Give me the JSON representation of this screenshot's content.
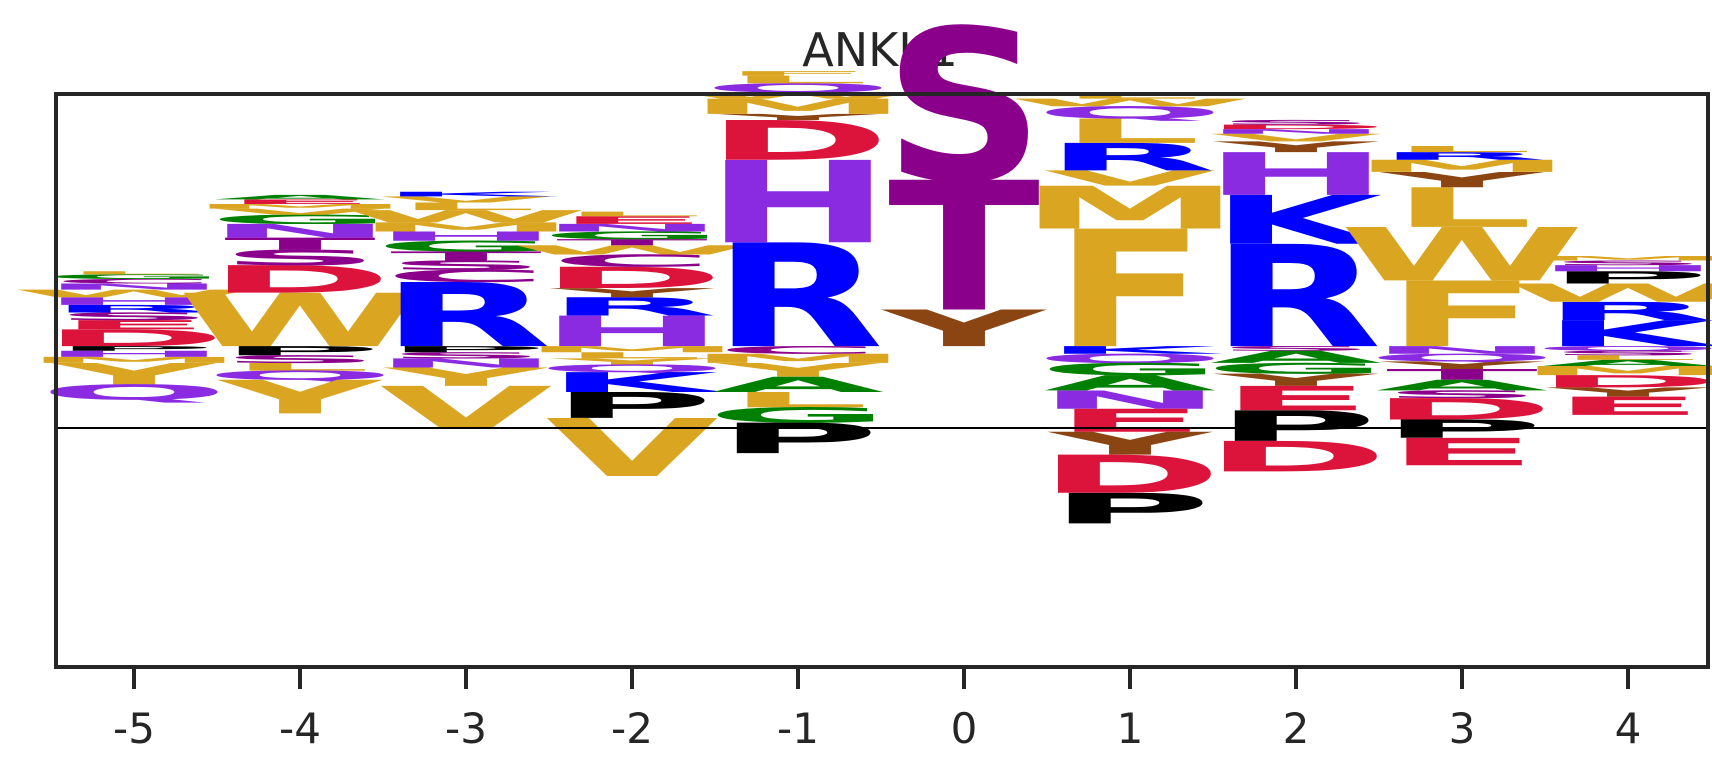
{
  "chart_data": {
    "type": "sequence-logo",
    "title": "ANKK1",
    "xlabel": "",
    "ylabel": "",
    "ylim": [
      -2.1,
      1.65
    ],
    "xticks": [
      "-5",
      "-4",
      "-3",
      "-2",
      "-1",
      "0",
      "1",
      "2",
      "3",
      "4"
    ],
    "colors": {
      "D": "#dc143c",
      "E": "#dc143c",
      "R": "#0000ff",
      "K": "#0000ff",
      "H": "#8a2be2",
      "N": "#8a2be2",
      "Q": "#8a2be2",
      "S": "#8b008b",
      "T": "#8b008b",
      "C": "#8b008b",
      "F": "#daa520",
      "W": "#daa520",
      "Y": "#daa520",
      "M": "#daa520",
      "L": "#daa520",
      "V": "#daa520",
      "I": "#daa520",
      "G": "#008000",
      "A": "#008000",
      "P": "#000000",
      "y": "#8b4513"
    },
    "positions": [
      {
        "x": "-5",
        "up": [
          [
            "D",
            0.11
          ],
          [
            "E",
            0.06
          ],
          [
            "S",
            0.05
          ],
          [
            "R",
            0.05
          ],
          [
            "H",
            0.05
          ],
          [
            "W",
            0.05
          ],
          [
            "N",
            0.04
          ],
          [
            "C",
            0.03
          ],
          [
            "G",
            0.03
          ],
          [
            "L",
            0.02
          ]
        ],
        "down": [
          [
            "P",
            0.03
          ],
          [
            "H",
            0.04
          ],
          [
            "M",
            0.04
          ],
          [
            "Y",
            0.14
          ],
          [
            "Q",
            0.1
          ]
        ]
      },
      {
        "x": "-4",
        "up": [
          [
            "W",
            0.35
          ],
          [
            "D",
            0.18
          ],
          [
            "S",
            0.1
          ],
          [
            "T",
            0.08
          ],
          [
            "N",
            0.09
          ],
          [
            "G",
            0.06
          ],
          [
            "V",
            0.04
          ],
          [
            "M",
            0.03
          ],
          [
            "E",
            0.03
          ],
          [
            "A",
            0.03
          ]
        ],
        "down": [
          [
            "P",
            0.06
          ],
          [
            "S",
            0.05
          ],
          [
            "L",
            0.05
          ],
          [
            "Q",
            0.06
          ],
          [
            "Y",
            0.22
          ]
        ]
      },
      {
        "x": "-3",
        "up": [
          [
            "R",
            0.42
          ],
          [
            "C",
            0.08
          ],
          [
            "S",
            0.06
          ],
          [
            "T",
            0.06
          ],
          [
            "G",
            0.07
          ],
          [
            "H",
            0.06
          ],
          [
            "M",
            0.06
          ],
          [
            "W",
            0.08
          ],
          [
            "L",
            0.05
          ],
          [
            "V",
            0.04
          ],
          [
            "K",
            0.03
          ]
        ],
        "down": [
          [
            "P",
            0.04
          ],
          [
            "S",
            0.04
          ],
          [
            "N",
            0.06
          ],
          [
            "Y",
            0.12
          ],
          [
            "V",
            0.28
          ]
        ]
      },
      {
        "x": "-2",
        "up": [
          [
            "H",
            0.2
          ],
          [
            "R",
            0.12
          ],
          [
            "y",
            0.06
          ],
          [
            "D",
            0.14
          ],
          [
            "C",
            0.08
          ],
          [
            "W",
            0.06
          ],
          [
            "T",
            0.04
          ],
          [
            "G",
            0.05
          ],
          [
            "N",
            0.05
          ],
          [
            "E",
            0.05
          ],
          [
            "L",
            0.03
          ]
        ],
        "down": [
          [
            "M",
            0.04
          ],
          [
            "L",
            0.04
          ],
          [
            "Y",
            0.04
          ],
          [
            "Q",
            0.05
          ],
          [
            "K",
            0.13
          ],
          [
            "P",
            0.17
          ],
          [
            "V",
            0.38
          ]
        ]
      },
      {
        "x": "-1",
        "up": [
          [
            "R",
            0.68
          ],
          [
            "H",
            0.54
          ],
          [
            "D",
            0.26
          ],
          [
            "y",
            0.04
          ],
          [
            "M",
            0.1
          ],
          [
            "W",
            0.04
          ],
          [
            "Q",
            0.06
          ],
          [
            "L",
            0.05
          ],
          [
            "F",
            0.03
          ]
        ],
        "down": [
          [
            "C",
            0.05
          ],
          [
            "M",
            0.06
          ],
          [
            "Y",
            0.09
          ],
          [
            "A",
            0.1
          ],
          [
            "L",
            0.1
          ],
          [
            "G",
            0.1
          ],
          [
            "P",
            0.2
          ]
        ]
      },
      {
        "x": "0",
        "up": [
          [
            "y",
            0.24
          ],
          [
            "T",
            0.85
          ],
          [
            "S",
            1.0
          ]
        ],
        "down": []
      },
      {
        "x": "1",
        "up": [
          [
            "F",
            0.77
          ],
          [
            "M",
            0.28
          ],
          [
            "V",
            0.1
          ],
          [
            "R",
            0.18
          ],
          [
            "L",
            0.16
          ],
          [
            "Q",
            0.08
          ],
          [
            "W",
            0.05
          ],
          [
            "L",
            0.04
          ]
        ],
        "down": [
          [
            "K",
            0.05
          ],
          [
            "Q",
            0.06
          ],
          [
            "G",
            0.08
          ],
          [
            "A",
            0.1
          ],
          [
            "N",
            0.12
          ],
          [
            "E",
            0.15
          ],
          [
            "y",
            0.15
          ],
          [
            "D",
            0.25
          ],
          [
            "P",
            0.2
          ]
        ]
      },
      {
        "x": "2",
        "up": [
          [
            "R",
            0.67
          ],
          [
            "K",
            0.32
          ],
          [
            "H",
            0.28
          ],
          [
            "y",
            0.07
          ],
          [
            "V",
            0.05
          ],
          [
            "N",
            0.03
          ],
          [
            "D",
            0.03
          ],
          [
            "S",
            0.03
          ]
        ],
        "down": [
          [
            "S",
            0.03
          ],
          [
            "A",
            0.08
          ],
          [
            "G",
            0.07
          ],
          [
            "y",
            0.08
          ],
          [
            "E",
            0.16
          ],
          [
            "P",
            0.2
          ],
          [
            "D",
            0.2
          ]
        ]
      },
      {
        "x": "3",
        "up": [
          [
            "F",
            0.43
          ],
          [
            "W",
            0.35
          ],
          [
            "L",
            0.26
          ],
          [
            "y",
            0.1
          ],
          [
            "M",
            0.08
          ],
          [
            "R",
            0.05
          ],
          [
            "L",
            0.04
          ]
        ],
        "down": [
          [
            "N",
            0.05
          ],
          [
            "Q",
            0.05
          ],
          [
            "y",
            0.05
          ],
          [
            "T",
            0.07
          ],
          [
            "A",
            0.07
          ],
          [
            "S",
            0.05
          ],
          [
            "D",
            0.14
          ],
          [
            "P",
            0.12
          ],
          [
            "E",
            0.18
          ]
        ]
      },
      {
        "x": "4",
        "up": [
          [
            "K",
            0.17
          ],
          [
            "R",
            0.12
          ],
          [
            "W",
            0.12
          ],
          [
            "P",
            0.08
          ],
          [
            "H",
            0.04
          ],
          [
            "S",
            0.03
          ],
          [
            "M",
            0.03
          ]
        ],
        "down": [
          [
            "Q",
            0.03
          ],
          [
            "S",
            0.03
          ],
          [
            "L",
            0.03
          ],
          [
            "A",
            0.04
          ],
          [
            "M",
            0.06
          ],
          [
            "D",
            0.08
          ],
          [
            "y",
            0.06
          ],
          [
            "E",
            0.12
          ]
        ]
      }
    ]
  }
}
